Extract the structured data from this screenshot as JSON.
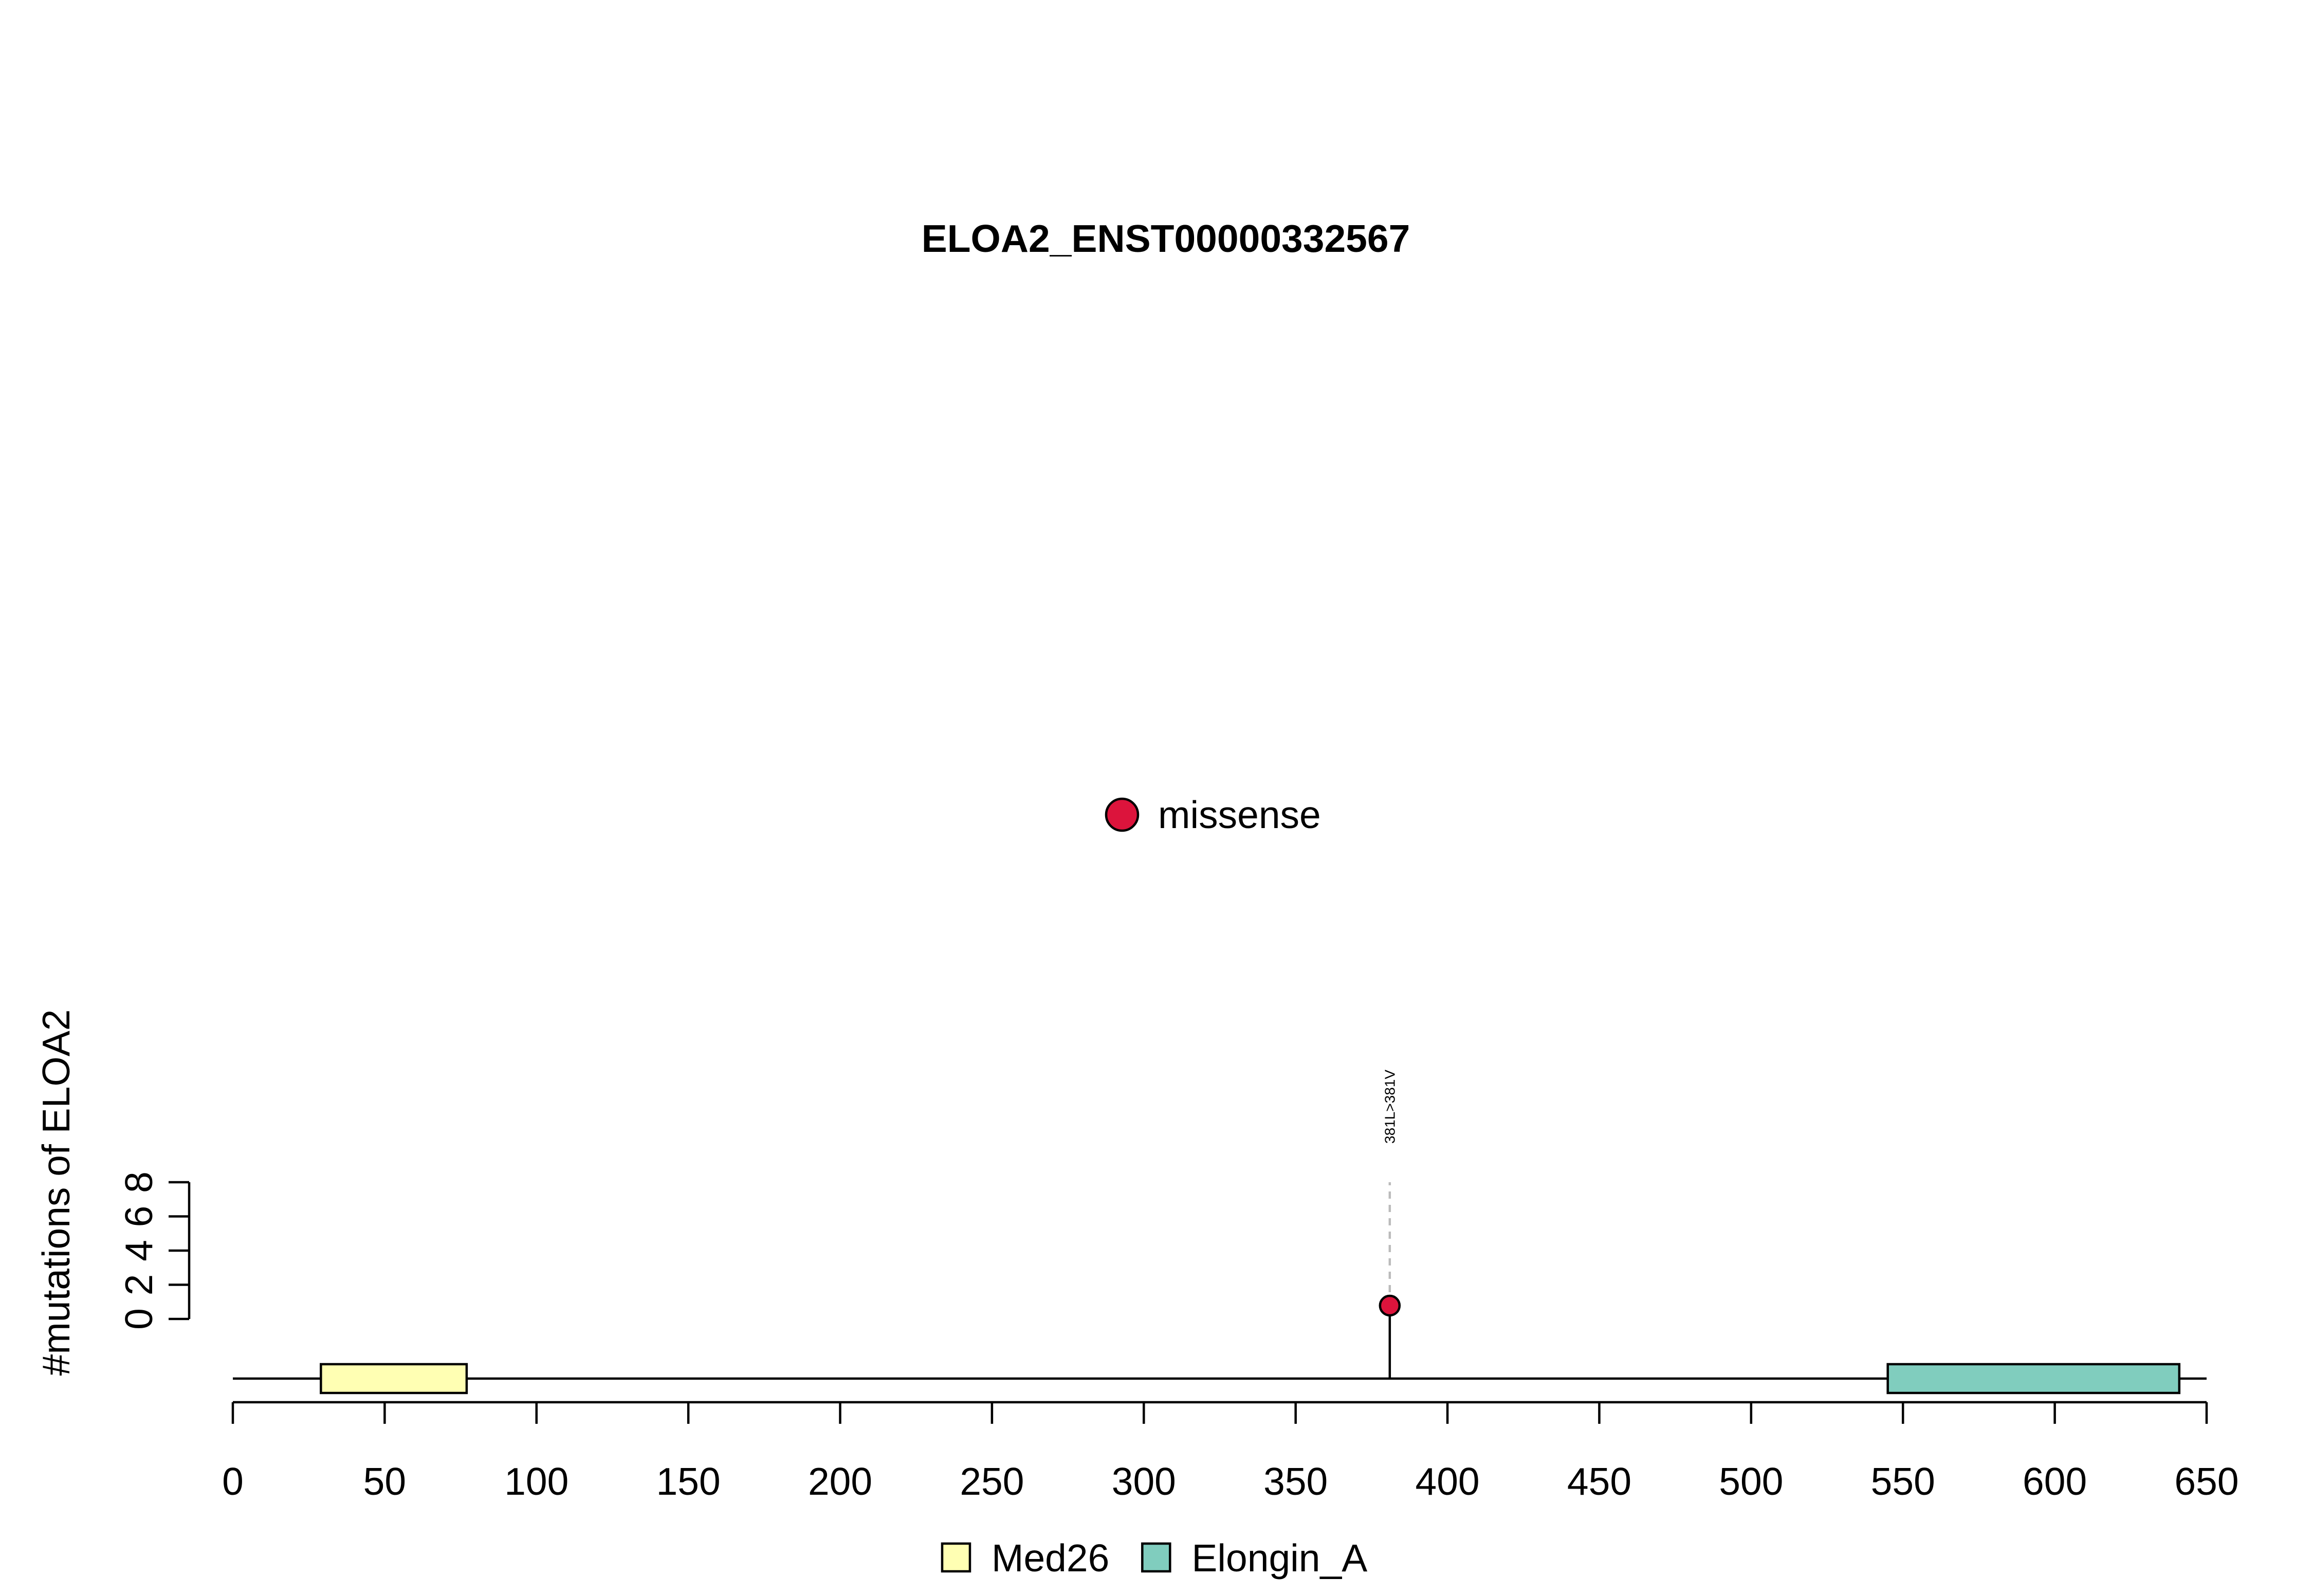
{
  "chart_data": {
    "type": "lollipop",
    "title": "ELOA2_ENST00000332567",
    "ylabel": "#mutations of ELOA2",
    "xlim": [
      0,
      650
    ],
    "x_ticks": [
      0,
      50,
      100,
      150,
      200,
      250,
      300,
      350,
      400,
      450,
      500,
      550,
      600,
      650
    ],
    "ylim": [
      0,
      8
    ],
    "y_ticks": [
      0,
      2,
      4,
      6,
      8
    ],
    "protein_length": 650,
    "domains": [
      {
        "name": "Med26",
        "start": 29,
        "end": 77,
        "color": "#FFFFB3"
      },
      {
        "name": "Elongin_A",
        "start": 545,
        "end": 641,
        "color": "#80CDBE"
      }
    ],
    "mutations": [
      {
        "position": 381,
        "count": 1,
        "label": "381L>381V",
        "type": "missense"
      }
    ],
    "mutation_types": [
      {
        "name": "missense",
        "color": "#DC143C"
      }
    ]
  }
}
